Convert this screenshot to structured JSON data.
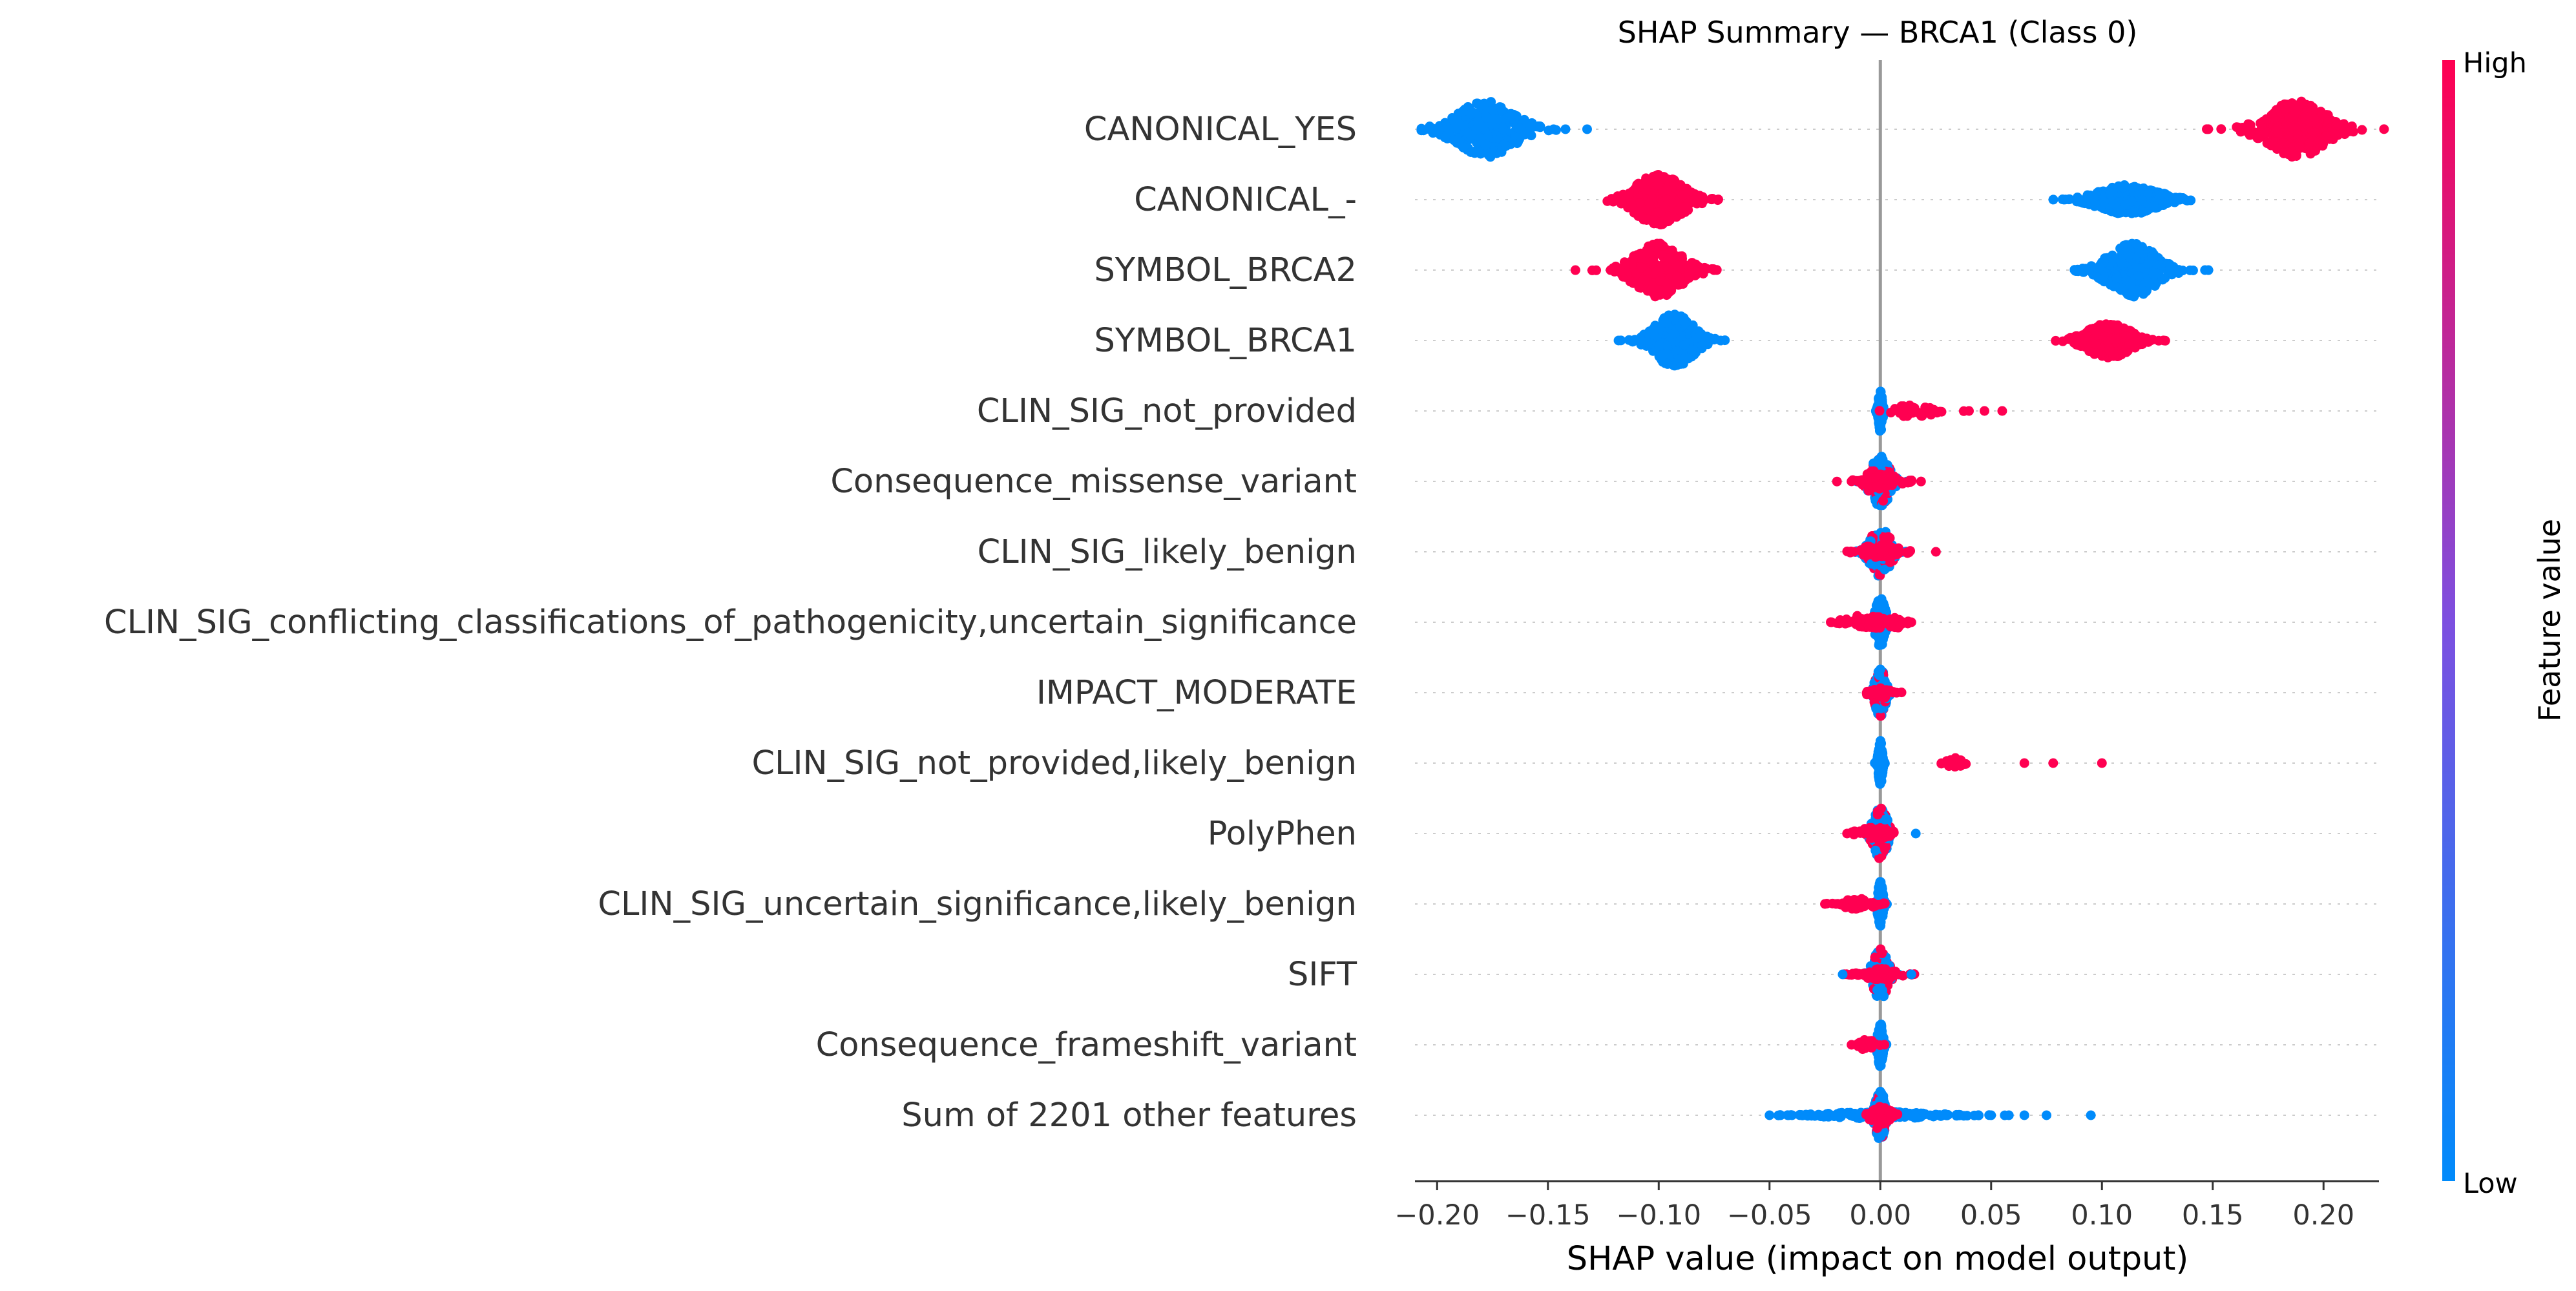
{
  "chart_data": {
    "type": "scatter",
    "subtype": "shap-beeswarm",
    "title": "SHAP Summary — BRCA1 (Class 0)",
    "xlabel": "SHAP value (impact on model output)",
    "xlim": [
      -0.21,
      0.225
    ],
    "x_ticks": [
      -0.2,
      -0.15,
      -0.1,
      -0.05,
      0.0,
      0.05,
      0.1,
      0.15,
      0.2
    ],
    "x_tick_labels": [
      "−0.20",
      "−0.15",
      "−0.10",
      "−0.05",
      "0.00",
      "0.05",
      "0.10",
      "0.15",
      "0.20"
    ],
    "colorbar": {
      "title": "Feature value",
      "high_label": "High",
      "low_label": "Low",
      "low_color": "#008bfb",
      "high_color": "#ff0051"
    },
    "grid": false,
    "zero_line": true,
    "features": [
      {
        "name": "CANONICAL_YES",
        "clusters": [
          {
            "center": -0.178,
            "spread": 0.012,
            "height": 0.95,
            "count": 320,
            "color": "low"
          },
          {
            "center": 0.188,
            "spread": 0.012,
            "height": 0.95,
            "count": 320,
            "color": "high"
          }
        ]
      },
      {
        "name": "CANONICAL_-",
        "clusters": [
          {
            "center": -0.1,
            "spread": 0.01,
            "height": 0.85,
            "count": 300,
            "color": "high"
          },
          {
            "center": 0.112,
            "spread": 0.012,
            "height": 0.5,
            "count": 320,
            "color": "low"
          }
        ]
      },
      {
        "name": "SYMBOL_BRCA2",
        "clusters": [
          {
            "center": -0.1,
            "spread": 0.01,
            "height": 0.9,
            "count": 280,
            "color": "high"
          },
          {
            "center": 0.114,
            "spread": 0.01,
            "height": 0.9,
            "count": 280,
            "color": "low"
          }
        ]
      },
      {
        "name": "SYMBOL_BRCA1",
        "clusters": [
          {
            "center": -0.093,
            "spread": 0.008,
            "height": 0.9,
            "count": 260,
            "color": "low"
          },
          {
            "center": 0.103,
            "spread": 0.009,
            "height": 0.6,
            "count": 260,
            "color": "high"
          }
        ]
      },
      {
        "name": "CLIN_SIG_not_provided",
        "clusters": [
          {
            "center": 0.0,
            "spread": 0.0008,
            "height": 0.7,
            "count": 140,
            "color": "low"
          },
          {
            "center": 0.015,
            "spread": 0.009,
            "height": 0.2,
            "count": 35,
            "color": "high"
          }
        ],
        "outliers": [
          {
            "x": 0.04,
            "color": "high"
          },
          {
            "x": 0.047,
            "color": "high"
          },
          {
            "x": 0.055,
            "color": "high"
          }
        ]
      },
      {
        "name": "Consequence_missense_variant",
        "clusters": [
          {
            "center": 0.0,
            "spread": 0.004,
            "height": 0.85,
            "count": 160,
            "color": "mix"
          },
          {
            "center": 0.0,
            "spread": 0.007,
            "height": 0.25,
            "count": 60,
            "color": "high"
          }
        ],
        "outliers": [
          {
            "x": 0.014,
            "color": "high"
          },
          {
            "x": -0.013,
            "color": "high"
          }
        ]
      },
      {
        "name": "CLIN_SIG_likely_benign",
        "clusters": [
          {
            "center": 0.0,
            "spread": 0.004,
            "height": 0.85,
            "count": 160,
            "color": "mix"
          },
          {
            "center": 0.0,
            "spread": 0.007,
            "height": 0.25,
            "count": 60,
            "color": "high"
          }
        ],
        "outliers": [
          {
            "x": 0.013,
            "color": "high"
          },
          {
            "x": -0.012,
            "color": "high"
          }
        ]
      },
      {
        "name": "CLIN_SIG_conflicting_classifications_of_pathogenicity,uncertain_significance",
        "clusters": [
          {
            "center": 0.0,
            "spread": 0.002,
            "height": 0.85,
            "count": 150,
            "color": "low"
          },
          {
            "center": -0.006,
            "spread": 0.008,
            "height": 0.25,
            "count": 50,
            "color": "high"
          },
          {
            "center": 0.007,
            "spread": 0.004,
            "height": 0.2,
            "count": 25,
            "color": "high"
          }
        ],
        "outliers": [
          {
            "x": -0.022,
            "color": "high"
          },
          {
            "x": 0.014,
            "color": "high"
          }
        ]
      },
      {
        "name": "IMPACT_MODERATE",
        "clusters": [
          {
            "center": 0.0,
            "spread": 0.002,
            "height": 0.85,
            "count": 140,
            "color": "mix"
          },
          {
            "center": 0.0,
            "spread": 0.004,
            "height": 0.2,
            "count": 40,
            "color": "high"
          }
        ],
        "outliers": [
          {
            "x": 0.007,
            "color": "high"
          },
          {
            "x": -0.005,
            "color": "high"
          }
        ]
      },
      {
        "name": "CLIN_SIG_not_provided,likely_benign",
        "clusters": [
          {
            "center": 0.0,
            "spread": 0.0008,
            "height": 0.75,
            "count": 140,
            "color": "low"
          },
          {
            "center": 0.033,
            "spread": 0.003,
            "height": 0.18,
            "count": 20,
            "color": "high"
          }
        ],
        "outliers": [
          {
            "x": 0.065,
            "color": "high"
          },
          {
            "x": 0.078,
            "color": "high"
          },
          {
            "x": 0.1,
            "color": "high"
          }
        ]
      },
      {
        "name": "PolyPhen",
        "clusters": [
          {
            "center": 0.0,
            "spread": 0.003,
            "height": 0.85,
            "count": 150,
            "color": "mix"
          },
          {
            "center": -0.003,
            "spread": 0.006,
            "height": 0.22,
            "count": 50,
            "color": "high"
          }
        ],
        "outliers": [
          {
            "x": 0.016,
            "color": "low"
          },
          {
            "x": -0.015,
            "color": "high"
          }
        ]
      },
      {
        "name": "CLIN_SIG_uncertain_significance,likely_benign",
        "clusters": [
          {
            "center": 0.0,
            "spread": 0.001,
            "height": 0.75,
            "count": 140,
            "color": "low"
          },
          {
            "center": -0.01,
            "spread": 0.006,
            "height": 0.18,
            "count": 40,
            "color": "high"
          }
        ],
        "outliers": [
          {
            "x": -0.025,
            "color": "high"
          },
          {
            "x": -0.02,
            "color": "high"
          }
        ]
      },
      {
        "name": "SIFT",
        "clusters": [
          {
            "center": 0.0,
            "spread": 0.003,
            "height": 0.85,
            "count": 150,
            "color": "mix"
          },
          {
            "center": 0.0,
            "spread": 0.006,
            "height": 0.22,
            "count": 50,
            "color": "high"
          }
        ],
        "outliers": [
          {
            "x": 0.014,
            "color": "low"
          },
          {
            "x": -0.017,
            "color": "low"
          }
        ]
      },
      {
        "name": "Consequence_frameshift_variant",
        "clusters": [
          {
            "center": 0.0,
            "spread": 0.001,
            "height": 0.75,
            "count": 130,
            "color": "low"
          },
          {
            "center": -0.006,
            "spread": 0.003,
            "height": 0.18,
            "count": 25,
            "color": "high"
          }
        ],
        "outliers": [
          {
            "x": -0.013,
            "color": "high"
          }
        ]
      },
      {
        "name": "Sum of 2201 other features",
        "clusters": [
          {
            "center": 0.0,
            "spread": 0.002,
            "height": 0.85,
            "count": 180,
            "color": "mix"
          },
          {
            "center": 0.0,
            "spread": 0.02,
            "height": 0.12,
            "count": 160,
            "color": "low"
          },
          {
            "center": 0.0,
            "spread": 0.004,
            "height": 0.3,
            "count": 60,
            "color": "high"
          }
        ],
        "outliers": [
          {
            "x": -0.05,
            "color": "low"
          },
          {
            "x": -0.045,
            "color": "low"
          },
          {
            "x": 0.05,
            "color": "low"
          },
          {
            "x": 0.058,
            "color": "low"
          },
          {
            "x": 0.065,
            "color": "low"
          },
          {
            "x": 0.075,
            "color": "low"
          },
          {
            "x": 0.095,
            "color": "low"
          }
        ]
      }
    ]
  }
}
